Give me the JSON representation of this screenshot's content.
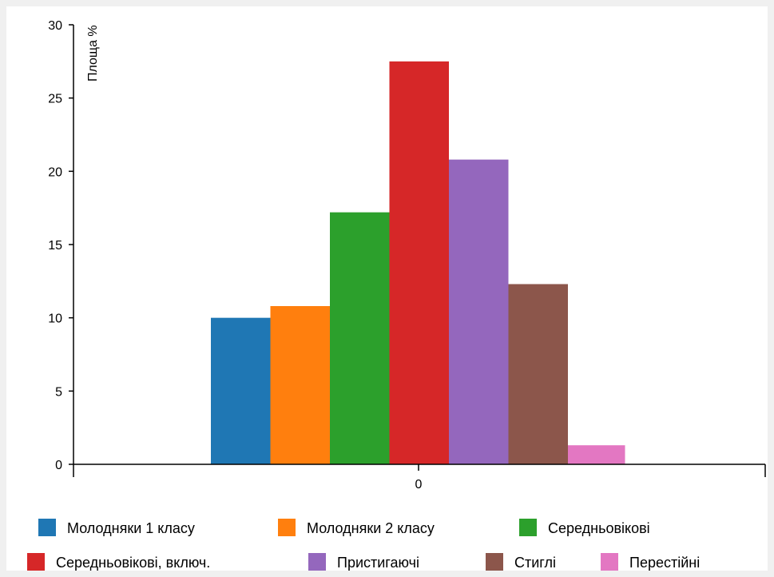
{
  "chart_data": {
    "type": "bar",
    "categories": [
      "0"
    ],
    "series": [
      {
        "name": "Молодняки 1 класу",
        "values": [
          10.0
        ],
        "color": "#1f77b4"
      },
      {
        "name": "Молодняки 2 класу",
        "values": [
          10.8
        ],
        "color": "#ff7f0e"
      },
      {
        "name": "Середньовікові",
        "values": [
          17.2
        ],
        "color": "#2ca02c"
      },
      {
        "name": "Середньовікові, включ.",
        "values": [
          27.5
        ],
        "color": "#d62728"
      },
      {
        "name": "Пристигаючі",
        "values": [
          20.8
        ],
        "color": "#9467bd"
      },
      {
        "name": "Стиглі",
        "values": [
          12.3
        ],
        "color": "#8c564b"
      },
      {
        "name": "Перестійні",
        "values": [
          1.3
        ],
        "color": "#e377c2"
      }
    ],
    "ylabel": "Площа %",
    "ylim": [
      0,
      30
    ],
    "yticks": [
      "0",
      "5",
      "10",
      "15",
      "20",
      "25",
      "30"
    ],
    "grid": false,
    "legend_position": "bottom"
  }
}
